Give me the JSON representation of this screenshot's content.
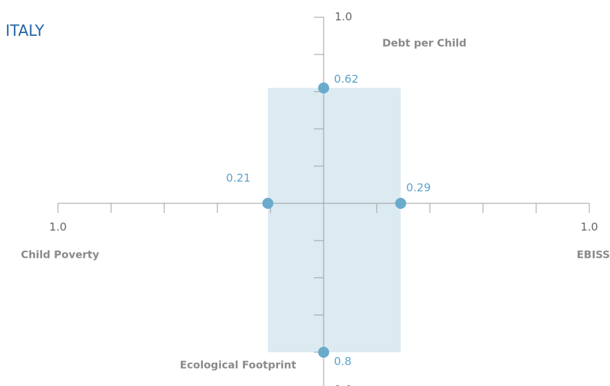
{
  "chart_data": {
    "type": "cross",
    "title": "ITALY",
    "lim": [
      0,
      1
    ],
    "ticks": [
      0.2,
      0.4,
      0.6,
      0.8,
      {
        "value": 1,
        "label": "1.0"
      }
    ],
    "point_color": "#6aaacb",
    "band_color": "#dceaf2",
    "axes": [
      {
        "label": "Debt per Child",
        "value": 0.62
      },
      {
        "label": "EBISS",
        "value": 0.29
      },
      {
        "label": "Ecological Footprint",
        "value": 0.8
      },
      {
        "label": "Child Poverty",
        "value": 0.21
      }
    ]
  }
}
